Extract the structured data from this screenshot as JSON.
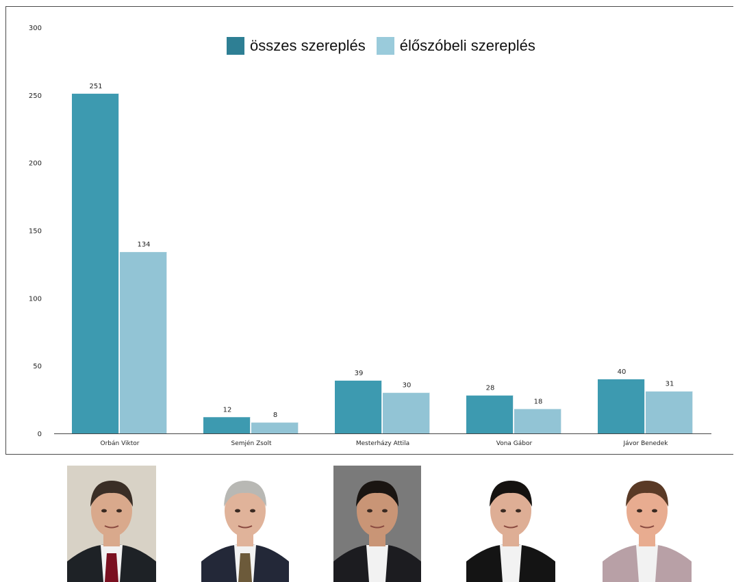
{
  "colors": {
    "series1": "#3d9ab0",
    "series2": "#92c4d5",
    "legend1": "#2e7f94",
    "legend2": "#9acbdb",
    "axis": "#444444",
    "text": "#222222"
  },
  "legend": [
    {
      "label": "összes szereplés",
      "color_key": "legend1"
    },
    {
      "label": "élőszóbeli szereplés",
      "color_key": "legend2"
    }
  ],
  "chart_data": {
    "type": "bar",
    "title": "",
    "xlabel": "",
    "ylabel": "",
    "ylim": [
      0,
      300
    ],
    "yticks": [
      0,
      50,
      100,
      150,
      200,
      250,
      300
    ],
    "grid": false,
    "legend_position": "top-center",
    "categories": [
      "Orbán Viktor",
      "Semjén Zsolt",
      "Mesterházy Attila",
      "Vona Gábor",
      "Jávor Benedek"
    ],
    "series": [
      {
        "name": "összes szereplés",
        "values": [
          251,
          12,
          39,
          28,
          40
        ]
      },
      {
        "name": "élőszóbeli szereplés",
        "values": [
          134,
          8,
          30,
          18,
          31
        ]
      }
    ],
    "data_labels": true
  },
  "photos": [
    {
      "name": "Orbán Viktor",
      "icon": "portrait-photo",
      "bg": "#d8d2c6",
      "hair": "#3a2e26",
      "suit": "#1e2226",
      "tie": "#7a1020",
      "skin": "#d9a98c"
    },
    {
      "name": "Semjén Zsolt",
      "icon": "portrait-photo",
      "bg": "#ffffff",
      "hair": "#b8b8b4",
      "suit": "#232838",
      "tie": "#6c5a3a",
      "skin": "#e0b39a"
    },
    {
      "name": "Mesterházy Attila",
      "icon": "portrait-photo",
      "bg": "#7a7a7a",
      "hair": "#1a1512",
      "suit": "#1c1c20",
      "tie": "",
      "skin": "#c99576"
    },
    {
      "name": "Vona Gábor",
      "icon": "portrait-photo",
      "bg": "#ffffff",
      "hair": "#151210",
      "suit": "#141414",
      "tie": "",
      "skin": "#deae95"
    },
    {
      "name": "Jávor Benedek",
      "icon": "portrait-photo",
      "bg": "#ffffff",
      "hair": "#5a3a26",
      "suit": "#b8a0a6",
      "tie": "",
      "skin": "#e8ac90"
    }
  ]
}
